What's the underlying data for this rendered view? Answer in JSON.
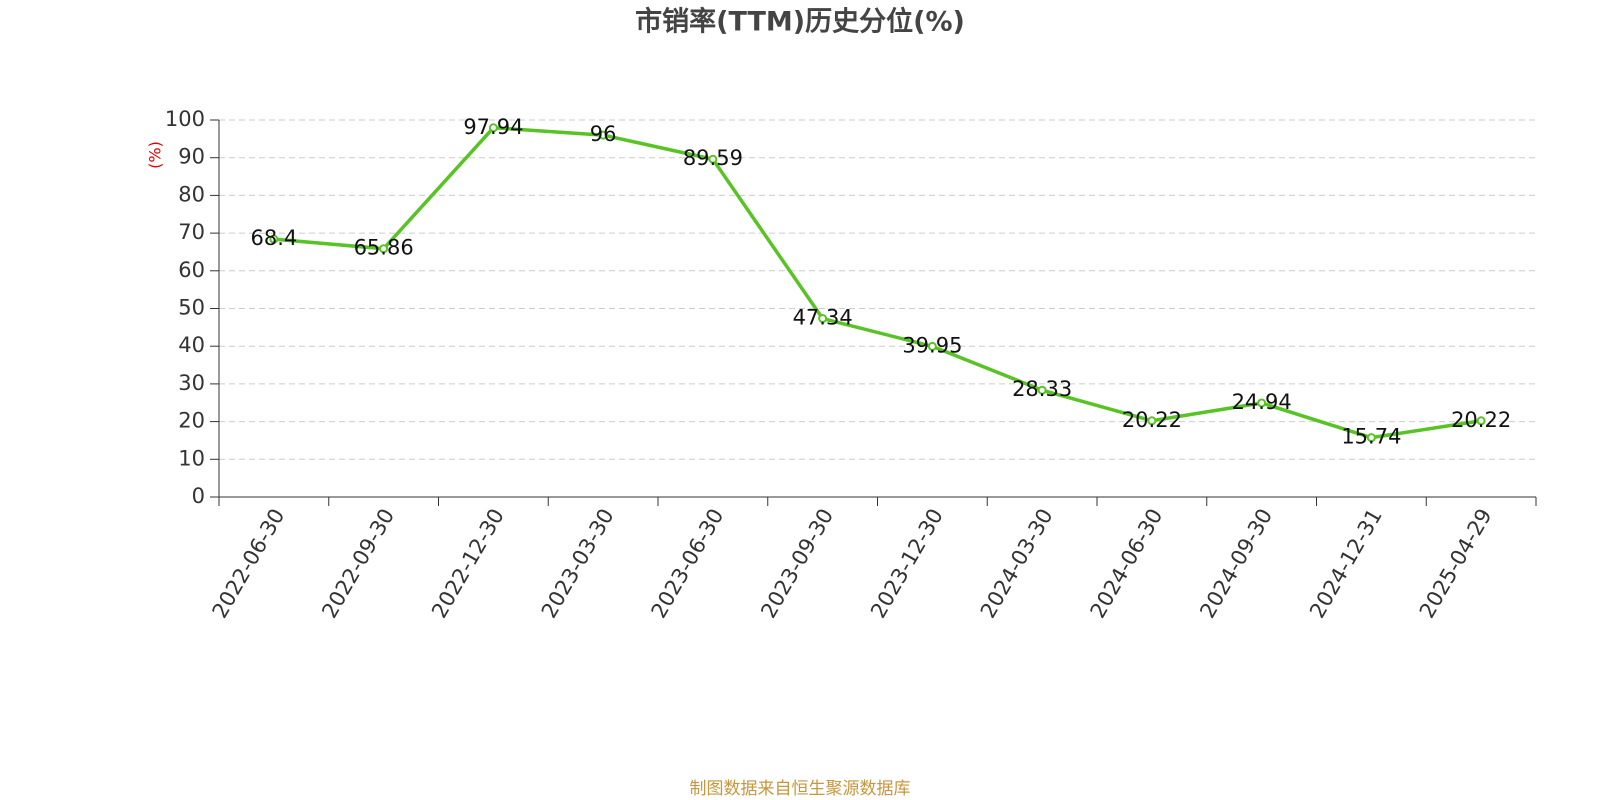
{
  "chart_data": {
    "type": "line",
    "title": "市销率(TTM)历史分位(%)",
    "y_label": "(%)",
    "source": "制图数据来自恒生聚源数据库",
    "categories": [
      "2022-06-30",
      "2022-09-30",
      "2022-12-30",
      "2023-03-30",
      "2023-06-30",
      "2023-09-30",
      "2023-12-30",
      "2024-03-30",
      "2024-06-30",
      "2024-09-30",
      "2024-12-31",
      "2025-04-29"
    ],
    "values": [
      68.4,
      65.86,
      97.94,
      96,
      89.59,
      47.34,
      39.95,
      28.33,
      20.22,
      24.94,
      15.74,
      20.22
    ],
    "color": "#58c324",
    "ylim": [
      0,
      100
    ],
    "yticks": [
      0,
      10,
      20,
      30,
      40,
      50,
      60,
      70,
      80,
      90,
      100
    ],
    "grid": true
  }
}
